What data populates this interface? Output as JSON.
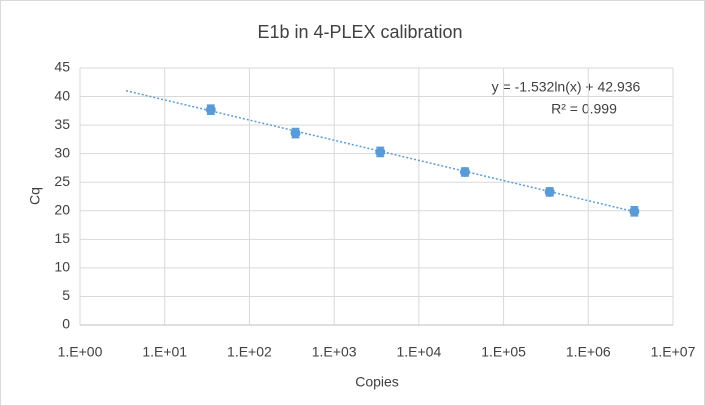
{
  "chart_data": {
    "type": "scatter",
    "title": "E1b in 4-PLEX calibration",
    "x_label": "Copies",
    "y_label": "Cq",
    "x": [
      35,
      350,
      3500,
      35000,
      350000,
      3500000
    ],
    "y": [
      37.7,
      33.6,
      30.3,
      26.8,
      23.3,
      19.9
    ],
    "errors": [
      0.8,
      0.8,
      0.8,
      0.7,
      0.7,
      0.8
    ],
    "color": "#5b9bd5",
    "trendline": {
      "x": [
        3.5,
        4000000
      ],
      "y": [
        41.02,
        19.64
      ],
      "color": "#5b9bd5"
    },
    "annotations": [
      "y = -1.532ln(x) + 42.936",
      "R² = 0.999"
    ],
    "xscale": "log",
    "xlim": [
      1,
      10000000
    ],
    "xticks": [
      {
        "value": 1,
        "label": "1.E+00"
      },
      {
        "value": 10,
        "label": "1.E+01"
      },
      {
        "value": 100,
        "label": "1.E+02"
      },
      {
        "value": 1000,
        "label": "1.E+03"
      },
      {
        "value": 10000,
        "label": "1.E+04"
      },
      {
        "value": 100000,
        "label": "1.E+05"
      },
      {
        "value": 1000000,
        "label": "1.E+06"
      },
      {
        "value": 10000000,
        "label": "1.E+07"
      }
    ],
    "ylim": [
      0,
      45
    ],
    "yticks": [
      0,
      5,
      10,
      15,
      20,
      25,
      30,
      35,
      40,
      45
    ],
    "grid": true
  }
}
